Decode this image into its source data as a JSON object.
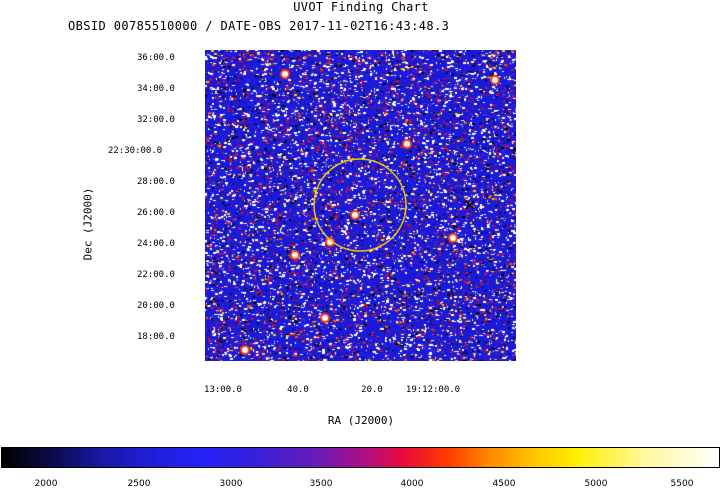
{
  "title": "UVOT Finding Chart",
  "subtitle": "OBSID 00785510000 / DATE-OBS 2017-11-02T16:43:48.3",
  "axes": {
    "xlabel": "RA (J2000)",
    "ylabel": "Dec (J2000)",
    "dec_ticks": [
      "36:00.0",
      "34:00.0",
      "32:00.0",
      "22:30:00.0",
      "28:00.0",
      "26:00.0",
      "24:00.0",
      "22:00.0",
      "20:00.0",
      "18:00.0"
    ],
    "ra_ticks": [
      "13:00.0",
      "40.0",
      "20.0",
      "19:12:00.0"
    ]
  },
  "colorbar": {
    "ticks": [
      "2000",
      "2500",
      "3000",
      "3500",
      "4000",
      "4500",
      "5000",
      "5500"
    ],
    "colormap": "blue-red-yellow-white"
  },
  "image": {
    "background_color": "#1a1ad8",
    "circle_color": "#e8c800",
    "marker_label": "x"
  }
}
